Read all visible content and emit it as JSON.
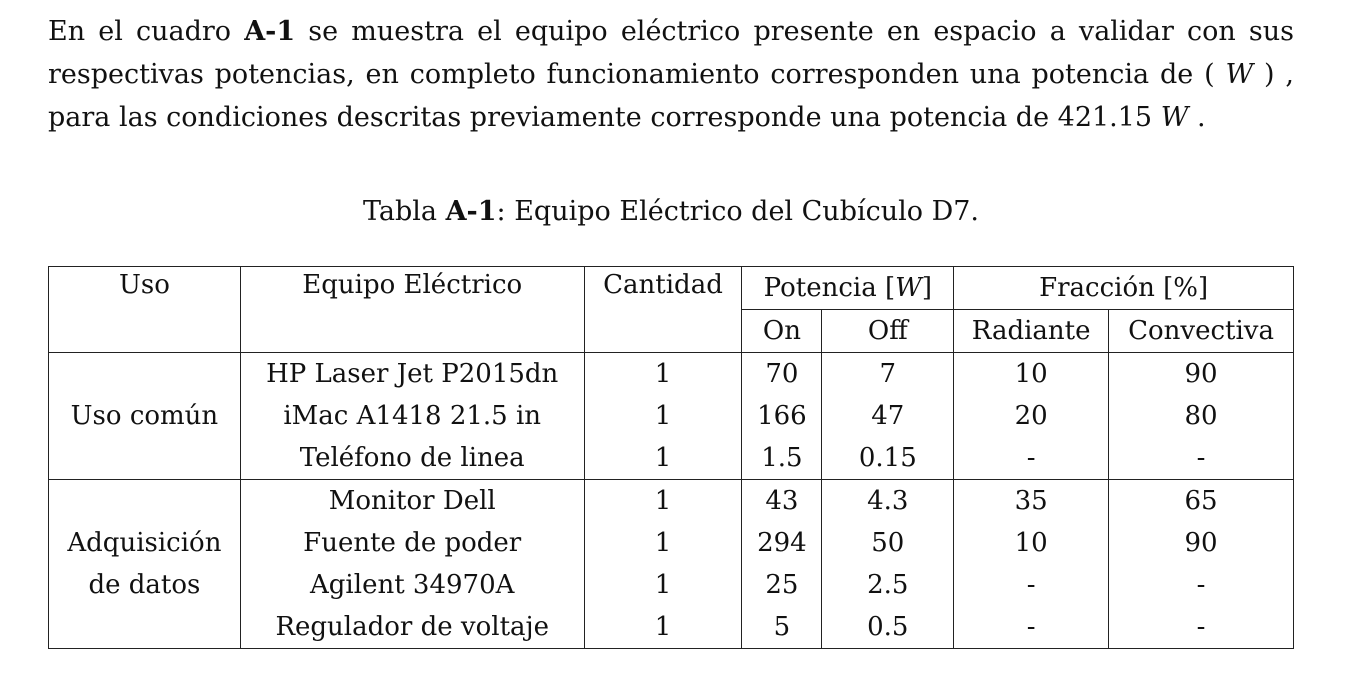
{
  "paragraph": {
    "p1": "En el cuadro ",
    "ref": "A-1",
    "p2": " se muestra el equipo eléctrico presente en espacio a validar con sus respectivas potencias, en completo funcionamiento corresponden una potencia de ( ",
    "unit1": "W",
    "p3": " ) , para las condiciones descritas previamente corresponde una potencia de 421.15 ",
    "unit2": "W",
    "p4": " ."
  },
  "caption": {
    "prefix": "Tabla ",
    "ref": "A-1",
    "text": ": Equipo Eléctrico del Cubículo D7."
  },
  "table": {
    "headers": {
      "uso": "Uso",
      "equipo": "Equipo Eléctrico",
      "cantidad": "Cantidad",
      "potencia_label": "Potencia [",
      "potencia_unit": "W",
      "potencia_close": "]",
      "fraccion": "Fracción [%]",
      "on": "On",
      "off": "Off",
      "radiante": "Radiante",
      "convectiva": "Convectiva"
    },
    "groups": [
      {
        "label_lines": [
          "Uso común"
        ],
        "rows": [
          {
            "equipo": "HP Laser Jet P2015dn",
            "cantidad": "1",
            "on": "70",
            "off": "7",
            "radiante": "10",
            "convectiva": "90"
          },
          {
            "equipo": "iMac A1418 21.5 in",
            "cantidad": "1",
            "on": "166",
            "off": "47",
            "radiante": "20",
            "convectiva": "80"
          },
          {
            "equipo": "Teléfono de linea",
            "cantidad": "1",
            "on": "1.5",
            "off": "0.15",
            "radiante": "-",
            "convectiva": "-"
          }
        ]
      },
      {
        "label_lines": [
          "Adquisición",
          "de datos"
        ],
        "rows": [
          {
            "equipo": "Monitor Dell",
            "cantidad": "1",
            "on": "43",
            "off": "4.3",
            "radiante": "35",
            "convectiva": "65"
          },
          {
            "equipo": "Fuente de poder",
            "cantidad": "1",
            "on": "294",
            "off": "50",
            "radiante": "10",
            "convectiva": "90"
          },
          {
            "equipo": "Agilent 34970A",
            "cantidad": "1",
            "on": "25",
            "off": "2.5",
            "radiante": "-",
            "convectiva": "-"
          },
          {
            "equipo": "Regulador de voltaje",
            "cantidad": "1",
            "on": "5",
            "off": "0.5",
            "radiante": "-",
            "convectiva": "-"
          }
        ]
      }
    ]
  }
}
